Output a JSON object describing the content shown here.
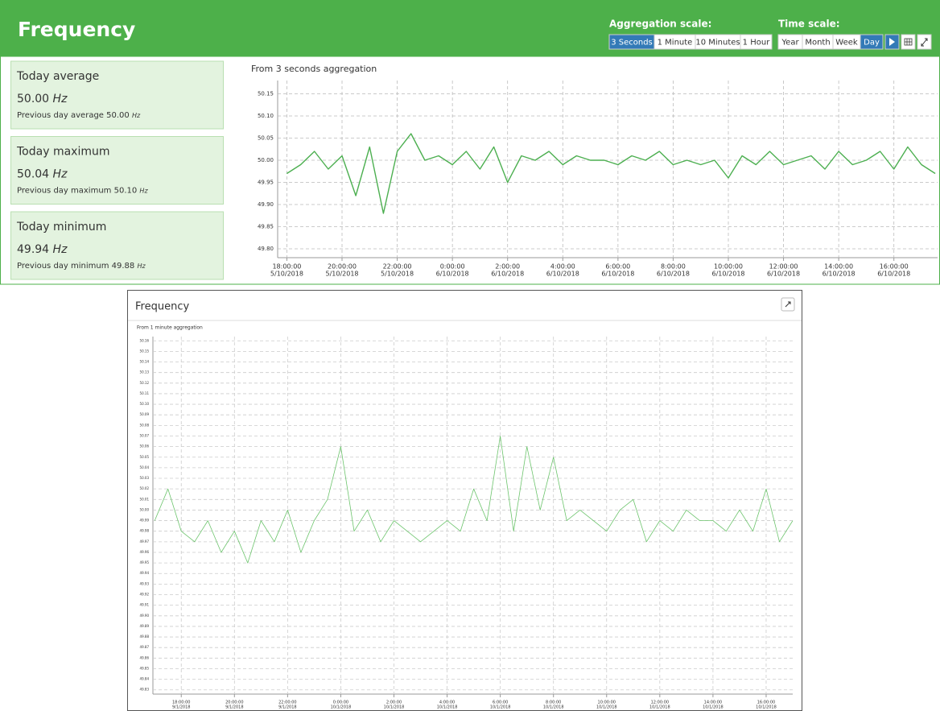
{
  "header": {
    "title": "Frequency",
    "aggregation_label": "Aggregation scale:",
    "aggregation_buttons": [
      "3 Seconds",
      "1 Minute",
      "10 Minutes",
      "1 Hour"
    ],
    "aggregation_active": 0,
    "time_label": "Time scale:",
    "time_buttons": [
      "Year",
      "Month",
      "Week",
      "Day"
    ],
    "time_active": 3
  },
  "stats": [
    {
      "title": "Today average",
      "value": "50.00",
      "unit": "Hz",
      "previous_label": "Previous day average",
      "previous_value": "50.00",
      "previous_unit": "Hz"
    },
    {
      "title": "Today maximum",
      "value": "50.04",
      "unit": "Hz",
      "previous_label": "Previous day maximum",
      "previous_value": "50.10",
      "previous_unit": "Hz"
    },
    {
      "title": "Today minimum",
      "value": "49.94",
      "unit": "Hz",
      "previous_label": "Previous day minimum",
      "previous_value": "49.88",
      "previous_unit": "Hz"
    }
  ],
  "panel": {
    "title": "Frequency"
  },
  "chart_data": [
    {
      "type": "line",
      "subtitle": "From 3 seconds aggregation",
      "color": "#4caf50",
      "grid": true,
      "xlim": [
        "5/10/2018 17:40:00",
        "6/10/2018 17:35:00"
      ],
      "xticks": [
        {
          "time": "18:00:00",
          "date": "5/10/2018"
        },
        {
          "time": "20:00:00",
          "date": "5/10/2018"
        },
        {
          "time": "22:00:00",
          "date": "5/10/2018"
        },
        {
          "time": "0:00:00",
          "date": "6/10/2018"
        },
        {
          "time": "2:00:00",
          "date": "6/10/2018"
        },
        {
          "time": "4:00:00",
          "date": "6/10/2018"
        },
        {
          "time": "6:00:00",
          "date": "6/10/2018"
        },
        {
          "time": "8:00:00",
          "date": "6/10/2018"
        },
        {
          "time": "10:00:00",
          "date": "6/10/2018"
        },
        {
          "time": "12:00:00",
          "date": "6/10/2018"
        },
        {
          "time": "14:00:00",
          "date": "6/10/2018"
        },
        {
          "time": "16:00:00",
          "date": "6/10/2018"
        }
      ],
      "ylim": [
        49.78,
        50.18
      ],
      "yticks": [
        50.15,
        {
          "value": 50.1,
          "label": "50.10"
        },
        50.05,
        {
          "value": 50,
          "label": "50.00"
        },
        49.95,
        {
          "value": 49.9,
          "label": "49.90"
        },
        49.85,
        {
          "value": 49.8,
          "label": "49.80"
        }
      ],
      "x": [
        "5/10/2018 18:00:00",
        "5/10/2018 18:30:00",
        "5/10/2018 19:00:00",
        "5/10/2018 19:30:00",
        "5/10/2018 20:00:00",
        "5/10/2018 20:30:00",
        "5/10/2018 21:00:00",
        "5/10/2018 21:30:00",
        "5/10/2018 22:00:00",
        "5/10/2018 22:30:00",
        "5/10/2018 23:00:00",
        "5/10/2018 23:30:00",
        "6/10/2018 0:00:00",
        "6/10/2018 0:30:00",
        "6/10/2018 1:00:00",
        "6/10/2018 1:30:00",
        "6/10/2018 2:00:00",
        "6/10/2018 2:30:00",
        "6/10/2018 3:00:00",
        "6/10/2018 3:30:00",
        "6/10/2018 4:00:00",
        "6/10/2018 4:30:00",
        "6/10/2018 5:00:00",
        "6/10/2018 5:30:00",
        "6/10/2018 6:00:00",
        "6/10/2018 6:30:00",
        "6/10/2018 7:00:00",
        "6/10/2018 7:30:00",
        "6/10/2018 8:00:00",
        "6/10/2018 8:30:00",
        "6/10/2018 9:00:00",
        "6/10/2018 9:30:00",
        "6/10/2018 10:00:00",
        "6/10/2018 10:30:00",
        "6/10/2018 11:00:00",
        "6/10/2018 11:30:00",
        "6/10/2018 12:00:00",
        "6/10/2018 12:30:00",
        "6/10/2018 13:00:00",
        "6/10/2018 13:30:00",
        "6/10/2018 14:00:00",
        "6/10/2018 14:30:00",
        "6/10/2018 15:00:00",
        "6/10/2018 15:30:00",
        "6/10/2018 16:00:00",
        "6/10/2018 16:30:00",
        "6/10/2018 17:00:00",
        "6/10/2018 17:30:00"
      ],
      "values": [
        49.97,
        49.99,
        50.02,
        49.98,
        50.01,
        49.92,
        50.03,
        49.88,
        50.02,
        50.06,
        50.0,
        50.01,
        49.99,
        50.02,
        49.98,
        50.03,
        49.95,
        50.01,
        50.0,
        50.02,
        49.99,
        50.01,
        50.0,
        50.0,
        49.99,
        50.01,
        50.0,
        50.02,
        49.99,
        50.0,
        49.99,
        50.0,
        49.96,
        50.01,
        49.99,
        50.02,
        49.99,
        50.0,
        50.01,
        49.98,
        50.02,
        49.99,
        50.0,
        50.02,
        49.98,
        50.03,
        49.99,
        49.97
      ]
    },
    {
      "type": "line",
      "subtitle": "From 1 minute aggregation",
      "color": "#6cc46c",
      "grid": true,
      "xlim": [
        "9/1/2018 16:56:00",
        "10/1/2018 17:00:00"
      ],
      "xticks": [
        {
          "time": "18:00:00",
          "date": "9/1/2018"
        },
        {
          "time": "20:00:00",
          "date": "9/1/2018"
        },
        {
          "time": "22:00:00",
          "date": "9/1/2018"
        },
        {
          "time": "0:00:00",
          "date": "10/1/2018"
        },
        {
          "time": "2:00:00",
          "date": "10/1/2018"
        },
        {
          "time": "4:00:00",
          "date": "10/1/2018"
        },
        {
          "time": "6:00:00",
          "date": "10/1/2018"
        },
        {
          "time": "8:00:00",
          "date": "10/1/2018"
        },
        {
          "time": "10:00:00",
          "date": "10/1/2018"
        },
        {
          "time": "12:00:00",
          "date": "10/1/2018"
        },
        {
          "time": "14:00:00",
          "date": "10/1/2018"
        },
        {
          "time": "16:00:00",
          "date": "10/1/2018"
        }
      ],
      "ylim": [
        49.826,
        50.164
      ],
      "yticks": [
        50.16,
        50.15,
        50.14,
        50.13,
        50.12,
        50.11,
        {
          "value": 50.1,
          "label": "50.10"
        },
        50.09,
        50.08,
        50.07,
        50.06,
        50.05,
        50.04,
        50.03,
        50.02,
        50.01,
        {
          "value": 50,
          "label": "50.00"
        },
        49.99,
        49.98,
        49.97,
        49.96,
        49.95,
        49.94,
        49.93,
        49.92,
        49.91,
        {
          "value": 49.9,
          "label": "49.90"
        },
        49.89,
        49.88,
        49.87,
        49.86,
        49.85,
        49.84,
        49.83
      ],
      "x": [
        "9/1/2018 17:00:00",
        "9/1/2018 17:30:00",
        "9/1/2018 18:00:00",
        "9/1/2018 18:30:00",
        "9/1/2018 19:00:00",
        "9/1/2018 19:30:00",
        "9/1/2018 20:00:00",
        "9/1/2018 20:30:00",
        "9/1/2018 21:00:00",
        "9/1/2018 21:30:00",
        "9/1/2018 22:00:00",
        "9/1/2018 22:30:00",
        "9/1/2018 23:00:00",
        "9/1/2018 23:30:00",
        "10/1/2018 0:00:00",
        "10/1/2018 0:30:00",
        "10/1/2018 1:00:00",
        "10/1/2018 1:30:00",
        "10/1/2018 2:00:00",
        "10/1/2018 2:30:00",
        "10/1/2018 3:00:00",
        "10/1/2018 3:30:00",
        "10/1/2018 4:00:00",
        "10/1/2018 4:30:00",
        "10/1/2018 5:00:00",
        "10/1/2018 5:30:00",
        "10/1/2018 6:00:00",
        "10/1/2018 6:30:00",
        "10/1/2018 7:00:00",
        "10/1/2018 7:30:00",
        "10/1/2018 8:00:00",
        "10/1/2018 8:30:00",
        "10/1/2018 9:00:00",
        "10/1/2018 9:30:00",
        "10/1/2018 10:00:00",
        "10/1/2018 10:30:00",
        "10/1/2018 11:00:00",
        "10/1/2018 11:30:00",
        "10/1/2018 12:00:00",
        "10/1/2018 12:30:00",
        "10/1/2018 13:00:00",
        "10/1/2018 13:30:00",
        "10/1/2018 14:00:00",
        "10/1/2018 14:30:00",
        "10/1/2018 15:00:00",
        "10/1/2018 15:30:00",
        "10/1/2018 16:00:00",
        "10/1/2018 16:30:00",
        "10/1/2018 17:00:00"
      ],
      "values": [
        49.99,
        50.02,
        49.98,
        49.97,
        49.99,
        49.96,
        49.98,
        49.95,
        49.99,
        49.97,
        50.0,
        49.96,
        49.99,
        50.01,
        50.06,
        49.98,
        50.0,
        49.97,
        49.99,
        49.98,
        49.97,
        49.98,
        49.99,
        49.98,
        50.02,
        49.99,
        50.07,
        49.98,
        50.06,
        50.0,
        50.05,
        49.99,
        50.0,
        49.99,
        49.98,
        50.0,
        50.01,
        49.97,
        49.99,
        49.98,
        50.0,
        49.99,
        49.99,
        49.98,
        50.0,
        49.98,
        50.02,
        49.97,
        49.99
      ]
    }
  ]
}
